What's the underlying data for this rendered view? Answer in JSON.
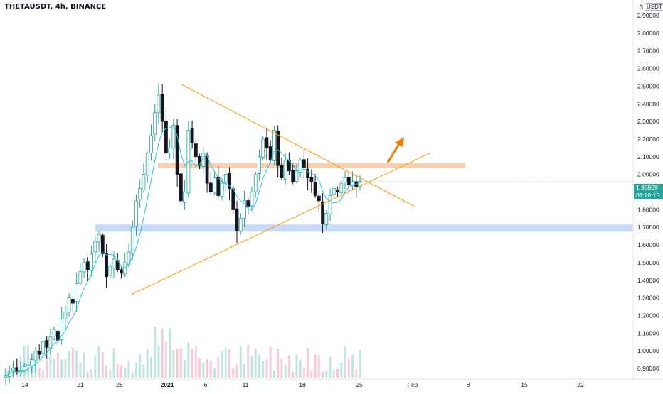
{
  "header": {
    "title": "THETAUSDT, 4h, BINANCE"
  },
  "price_axis": {
    "corner_value": "3",
    "unit": "USDT",
    "current_price": "1.95869",
    "countdown": "01:20:15",
    "accent_color": "#26a69a"
  },
  "colors": {
    "up": "#26a69a",
    "down": "#131722",
    "wick": "#131722",
    "ma_line": "#26c6da",
    "trendline": "#ff9800",
    "resistance_zone": "#f7c9a5",
    "support_zone": "#c7d9f7",
    "arrow": "#f57c00",
    "volume_up": "#b2dfdb",
    "volume_down": "#f8bbd0"
  },
  "chart_data": {
    "type": "candlestick",
    "title": "THETAUSDT, 4h, BINANCE",
    "xlabel": "",
    "ylabel": "",
    "ylim": [
      0.87,
      3.0
    ],
    "y_ticks": [
      "2.90000",
      "2.80000",
      "2.70000",
      "2.60000",
      "2.50000",
      "2.40000",
      "2.30000",
      "2.20000",
      "2.10000",
      "2.00000",
      "1.90000",
      "1.80000",
      "1.70000",
      "1.60000",
      "1.50000",
      "1.40000",
      "1.30000",
      "1.20000",
      "1.10000",
      "1.00000",
      "0.90000"
    ],
    "x_ticks": [
      "14",
      "21",
      "26",
      "2021",
      "6",
      "11",
      "18",
      "25",
      "Feb",
      "8",
      "15",
      "22"
    ],
    "grid": false,
    "closes": [
      0.86,
      0.88,
      0.9,
      0.88,
      0.89,
      0.91,
      0.92,
      0.95,
      1.0,
      0.98,
      1.05,
      1.02,
      1.08,
      1.12,
      1.06,
      1.18,
      1.22,
      1.3,
      1.27,
      1.38,
      1.45,
      1.5,
      1.46,
      1.55,
      1.62,
      1.66,
      1.55,
      1.42,
      1.48,
      1.52,
      1.46,
      1.44,
      1.5,
      1.56,
      1.7,
      1.85,
      1.92,
      2.0,
      2.12,
      2.22,
      2.35,
      2.45,
      2.3,
      2.12,
      2.15,
      2.28,
      2.0,
      1.85,
      1.9,
      2.25,
      2.18,
      2.1,
      2.05,
      2.12,
      1.95,
      1.9,
      1.98,
      1.88,
      1.95,
      2.0,
      1.92,
      1.8,
      1.68,
      1.75,
      1.85,
      1.82,
      1.9,
      2.0,
      2.1,
      2.2,
      2.15,
      2.08,
      2.25,
      2.05,
      1.98,
      2.08,
      2.02,
      1.96,
      2.02,
      2.08,
      2.04,
      1.98,
      1.96,
      1.88,
      1.85,
      1.72,
      1.78,
      1.88,
      1.92,
      1.9,
      1.95,
      1.98,
      1.94,
      1.96,
      1.93,
      1.96
    ],
    "moving_average": "MA",
    "drawings": {
      "descending_trendline": {
        "from": [
          "Jan 2",
          2.52
        ],
        "to": [
          "Jan 28",
          1.82
        ]
      },
      "ascending_trendline": {
        "from": [
          "Dec 26",
          1.32
        ],
        "to": [
          "Feb 1",
          2.12
        ]
      },
      "resistance_zone": [
        2.03,
        2.06
      ],
      "support_zone": [
        1.68,
        1.72
      ],
      "arrow": "up"
    }
  }
}
